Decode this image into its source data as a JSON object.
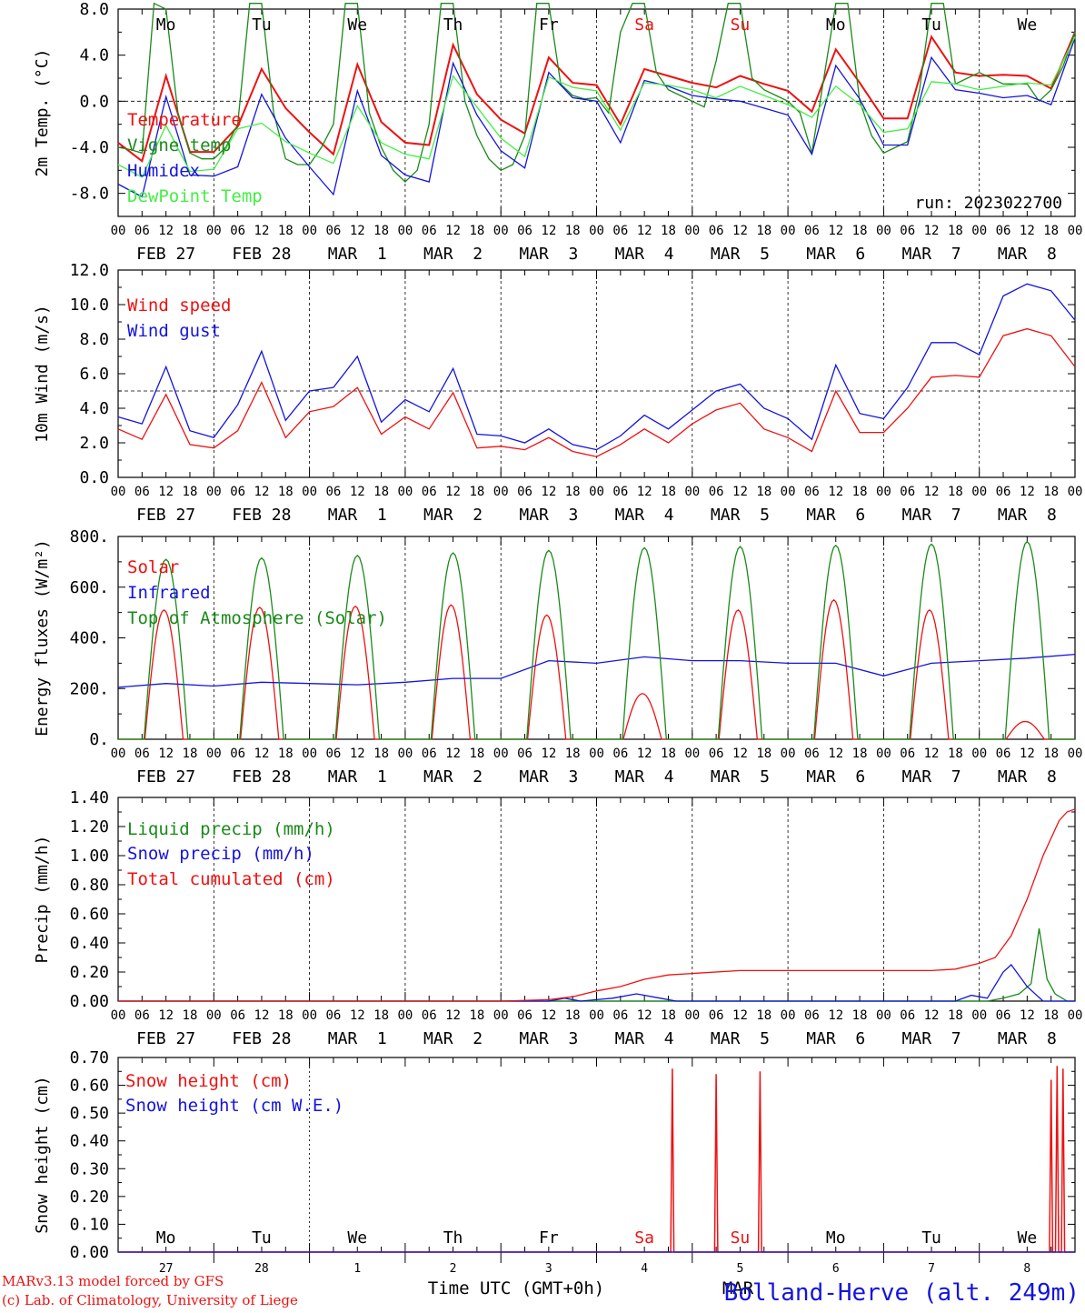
{
  "footer": {
    "model": "MARv3.13 model forced by GFS",
    "copyright": "(c) Lab. of Climatology, University of Liege",
    "xlabel": "Time UTC (GMT+0h)",
    "station": "Bolland-Herve (alt. 249m)",
    "month_overlay": "MAR"
  },
  "colors": {
    "red": "#ee1111",
    "green": "#1a8a1a",
    "blue": "#1414dd",
    "lightgreen": "#44ee44"
  },
  "days": {
    "weekday": [
      "Mo",
      "Tu",
      "We",
      "Th",
      "Fr",
      "Sa",
      "Su",
      "Mo",
      "Tu",
      "We"
    ],
    "weekend_index": [
      5,
      6
    ],
    "date": [
      "FEB 27",
      "FEB 28",
      "MAR  1",
      "MAR  2",
      "MAR  3",
      "MAR  4",
      "MAR  5",
      "MAR  6",
      "MAR  7",
      "MAR  8"
    ],
    "daynum": [
      "27",
      "28",
      "1",
      "2",
      "3",
      "4",
      "5",
      "6",
      "7",
      "8"
    ],
    "hour_ticks": [
      "00",
      "06",
      "12",
      "18"
    ],
    "final_tick": "00"
  },
  "chart_data": [
    {
      "type": "line",
      "name": "temperature",
      "ylabel": "2m Temp. (°C)",
      "ylim": [
        -10,
        8
      ],
      "yticks": [
        "8.0",
        "4.0",
        "0.0",
        "-4.0",
        "-8.0"
      ],
      "ytick_values": [
        8,
        4,
        0,
        -4,
        -8
      ],
      "ref_line": 0,
      "annotation": "run: 2023022700",
      "grid": "dashed vertical lines at each midnight",
      "x_unit": "hours since FEB 27 00 UTC",
      "series": [
        {
          "name": "Temperature",
          "color": "#ee1111",
          "x": [
            0,
            6,
            12,
            18,
            24,
            30,
            36,
            42,
            48,
            54,
            60,
            66,
            72,
            78,
            84,
            90,
            96,
            102,
            108,
            114,
            120,
            126,
            132,
            138,
            144,
            150,
            156,
            162,
            168,
            174,
            180,
            186,
            192,
            198,
            204,
            210,
            216,
            222,
            228,
            234,
            240
          ],
          "values": [
            -3.6,
            -5.2,
            2.2,
            -4.4,
            -4.4,
            -2.2,
            2.8,
            -0.6,
            -2.7,
            -4.6,
            3.2,
            -1.8,
            -3.6,
            -3.8,
            4.9,
            0.6,
            -1.6,
            -2.8,
            3.8,
            1.6,
            1.4,
            -2.0,
            2.8,
            2.2,
            1.6,
            1.2,
            2.2,
            1.5,
            0.9,
            -0.9,
            4.5,
            1.6,
            -1.5,
            -1.5,
            5.6,
            2.5,
            2.2,
            2.3,
            2.2,
            1.1,
            6.0
          ]
        },
        {
          "name": "Vigne temp",
          "color": "#1a8a1a",
          "x": [
            0,
            3,
            6,
            9,
            12,
            15,
            18,
            21,
            24,
            27,
            30,
            33,
            36,
            39,
            42,
            45,
            48,
            51,
            54,
            57,
            60,
            63,
            66,
            69,
            72,
            75,
            78,
            81,
            84,
            87,
            90,
            93,
            96,
            99,
            102,
            105,
            108,
            111,
            114,
            117,
            120,
            123,
            126,
            129,
            132,
            135,
            138,
            141,
            144,
            147,
            150,
            153,
            156,
            159,
            162,
            165,
            168,
            171,
            174,
            177,
            180,
            183,
            186,
            189,
            192,
            195,
            198,
            201,
            204,
            207,
            210,
            213,
            216,
            219,
            222,
            225,
            228,
            231,
            234,
            237,
            240
          ],
          "values": [
            -4.0,
            -4.2,
            -4.5,
            8.5,
            8.0,
            -1.0,
            -4.5,
            -5.0,
            -5.0,
            -4.0,
            -2.0,
            8.5,
            8.5,
            -1.0,
            -5.0,
            -5.5,
            -5.5,
            -4.0,
            -2.0,
            8.5,
            8.5,
            -1.0,
            -4.0,
            -6.0,
            -7.0,
            -6.0,
            -2.0,
            8.5,
            8.5,
            0.0,
            -3.0,
            -5.0,
            -6.0,
            -5.5,
            -3.0,
            8.5,
            8.5,
            1.5,
            0.5,
            0.2,
            0.3,
            -1.0,
            6.0,
            8.5,
            8.5,
            2.5,
            1.0,
            0.5,
            0.0,
            -0.5,
            3.5,
            8.5,
            8.5,
            2.0,
            1.0,
            0.5,
            0.0,
            -1.0,
            -4.5,
            2.0,
            8.5,
            8.5,
            0.0,
            -3.0,
            -4.5,
            -4.0,
            -3.5,
            1.0,
            8.5,
            8.5,
            1.5,
            2.0,
            2.5,
            2.0,
            1.5,
            1.5,
            1.5,
            0.0,
            1.0,
            3.0,
            6.0
          ]
        },
        {
          "name": "Humidex",
          "color": "#1414dd",
          "x": [
            0,
            6,
            12,
            18,
            24,
            30,
            36,
            42,
            48,
            54,
            60,
            66,
            72,
            78,
            84,
            90,
            96,
            102,
            108,
            114,
            120,
            126,
            132,
            138,
            144,
            150,
            156,
            162,
            168,
            174,
            180,
            186,
            192,
            198,
            204,
            210,
            216,
            222,
            228,
            234,
            240
          ],
          "values": [
            -7.2,
            -8.3,
            0.4,
            -6.4,
            -6.5,
            -5.7,
            0.6,
            -3.2,
            -5.7,
            -8.1,
            0.9,
            -4.7,
            -6.4,
            -7.0,
            3.3,
            -1.2,
            -4.3,
            -5.8,
            2.5,
            0.3,
            0.0,
            -3.6,
            1.8,
            1.3,
            0.5,
            0.2,
            0.0,
            -0.6,
            -1.2,
            -4.6,
            3.1,
            0.2,
            -3.8,
            -3.8,
            3.8,
            1.0,
            0.7,
            0.3,
            0.5,
            -0.3,
            5.5
          ]
        },
        {
          "name": "DewPoint Temp",
          "color": "#44ee44",
          "x": [
            0,
            6,
            12,
            18,
            24,
            30,
            36,
            42,
            48,
            54,
            60,
            66,
            72,
            78,
            84,
            90,
            96,
            102,
            108,
            114,
            120,
            126,
            132,
            138,
            144,
            150,
            156,
            162,
            168,
            174,
            180,
            186,
            192,
            198,
            204,
            210,
            216,
            222,
            228,
            234,
            240
          ],
          "values": [
            -5.5,
            -6.6,
            -2.1,
            -6.1,
            -5.9,
            -2.4,
            -1.9,
            -3.5,
            -4.5,
            -5.4,
            -0.4,
            -3.6,
            -4.6,
            -5.0,
            2.2,
            -0.5,
            -3.2,
            -4.8,
            2.1,
            1.2,
            0.9,
            -2.5,
            1.6,
            1.4,
            1.0,
            0.3,
            1.3,
            0.5,
            -0.3,
            -1.4,
            1.3,
            -0.3,
            -2.7,
            -2.4,
            1.7,
            1.5,
            1.0,
            1.3,
            1.6,
            1.4,
            5.6
          ]
        }
      ]
    },
    {
      "type": "line",
      "name": "wind",
      "ylabel": "10m Wind (m/s)",
      "ylim": [
        0,
        12
      ],
      "yticks": [
        "12.0",
        "10.0",
        "8.0",
        "6.0",
        "4.0",
        "2.0",
        "0.0"
      ],
      "ytick_values": [
        12,
        10,
        8,
        6,
        4,
        2,
        0
      ],
      "ref_line": 5,
      "x_unit": "hours since FEB 27 00 UTC",
      "series": [
        {
          "name": "Wind speed",
          "color": "#ee1111",
          "x": [
            0,
            6,
            12,
            18,
            24,
            30,
            36,
            42,
            48,
            54,
            60,
            66,
            72,
            78,
            84,
            90,
            96,
            102,
            108,
            114,
            120,
            126,
            132,
            138,
            144,
            150,
            156,
            162,
            168,
            174,
            180,
            186,
            192,
            198,
            204,
            210,
            216,
            222,
            228,
            234,
            240
          ],
          "values": [
            2.8,
            2.2,
            4.8,
            1.9,
            1.7,
            2.7,
            5.5,
            2.3,
            3.8,
            4.1,
            5.2,
            2.5,
            3.5,
            2.8,
            4.9,
            1.7,
            1.8,
            1.6,
            2.3,
            1.5,
            1.2,
            1.9,
            2.8,
            2.0,
            3.1,
            3.9,
            4.3,
            2.8,
            2.3,
            1.5,
            5.0,
            2.6,
            2.6,
            4.0,
            5.8,
            5.9,
            5.8,
            8.2,
            8.6,
            8.2,
            6.4
          ]
        },
        {
          "name": "Wind gust",
          "color": "#1414dd",
          "x": [
            0,
            6,
            12,
            18,
            24,
            30,
            36,
            42,
            48,
            54,
            60,
            66,
            72,
            78,
            84,
            90,
            96,
            102,
            108,
            114,
            120,
            126,
            132,
            138,
            144,
            150,
            156,
            162,
            168,
            174,
            180,
            186,
            192,
            198,
            204,
            210,
            216,
            222,
            228,
            234,
            240
          ],
          "values": [
            3.5,
            3.1,
            6.4,
            2.7,
            2.3,
            4.2,
            7.3,
            3.3,
            5.0,
            5.2,
            7.0,
            3.2,
            4.5,
            3.8,
            6.3,
            2.5,
            2.4,
            2.0,
            2.8,
            1.9,
            1.6,
            2.4,
            3.6,
            2.8,
            3.9,
            5.0,
            5.4,
            4.0,
            3.4,
            2.2,
            6.5,
            3.7,
            3.4,
            5.2,
            7.8,
            7.8,
            7.1,
            10.5,
            11.2,
            10.8,
            9.1
          ]
        }
      ]
    },
    {
      "type": "line",
      "name": "energy",
      "ylabel": "Energy fluxes (W/m²)",
      "ylim": [
        0,
        800
      ],
      "yticks": [
        "800.",
        "600.",
        "400.",
        "200.",
        "0."
      ],
      "ytick_values": [
        800,
        600,
        400,
        200,
        0
      ],
      "x_unit": "hours since FEB 27 00 UTC",
      "series": [
        {
          "name": "Solar",
          "color": "#ee1111",
          "daily_peak_hour_offset": 11.5,
          "daily_peak": [
            510,
            520,
            525,
            530,
            490,
            180,
            510,
            550,
            510,
            70
          ]
        },
        {
          "name": "Infrared",
          "color": "#1414dd",
          "x": [
            0,
            12,
            24,
            36,
            48,
            60,
            72,
            84,
            96,
            108,
            120,
            132,
            144,
            156,
            168,
            180,
            192,
            204,
            216,
            228,
            240
          ],
          "values": [
            205,
            220,
            210,
            225,
            220,
            215,
            225,
            240,
            240,
            310,
            300,
            325,
            310,
            310,
            300,
            300,
            250,
            300,
            310,
            320,
            335
          ]
        },
        {
          "name": "Top of Atmosphere (Solar)",
          "color": "#1a8a1a",
          "daily_peak_hour_offset": 12,
          "daily_peak": [
            710,
            715,
            725,
            735,
            745,
            755,
            760,
            765,
            770,
            780
          ]
        }
      ]
    },
    {
      "type": "line",
      "name": "precip",
      "ylabel": "Precip (mm/h)",
      "ylim": [
        0,
        1.4
      ],
      "yticks": [
        "1.40",
        "1.20",
        "1.00",
        "0.80",
        "0.60",
        "0.40",
        "0.20",
        "0.00"
      ],
      "ytick_values": [
        1.4,
        1.2,
        1.0,
        0.8,
        0.6,
        0.4,
        0.2,
        0.0
      ],
      "x_unit": "hours since FEB 27 00 UTC",
      "series": [
        {
          "name": "Liquid precip (mm/h)",
          "color": "#1a8a1a",
          "x": [
            0,
            218,
            222,
            226,
            229,
            231,
            233,
            235,
            238,
            240
          ],
          "values": [
            0,
            0,
            0.02,
            0.05,
            0.12,
            0.5,
            0.15,
            0.05,
            0,
            0
          ]
        },
        {
          "name": "Snow precip (mm/h)",
          "color": "#1414dd",
          "x": [
            0,
            108,
            112,
            116,
            120,
            124,
            130,
            136,
            140,
            150,
            210,
            214,
            218,
            222,
            224,
            228,
            232,
            240
          ],
          "values": [
            0,
            0,
            0.02,
            0,
            0.01,
            0.02,
            0.05,
            0.02,
            0,
            0,
            0,
            0.04,
            0.02,
            0.2,
            0.25,
            0.1,
            0,
            0
          ]
        },
        {
          "name": "Total cumulated (cm)",
          "color": "#ee1111",
          "x": [
            0,
            96,
            108,
            114,
            120,
            126,
            132,
            138,
            144,
            156,
            168,
            180,
            192,
            204,
            210,
            216,
            220,
            224,
            228,
            232,
            236,
            238,
            240
          ],
          "values": [
            0,
            0,
            0.01,
            0.03,
            0.07,
            0.1,
            0.15,
            0.18,
            0.19,
            0.21,
            0.21,
            0.21,
            0.21,
            0.21,
            0.22,
            0.26,
            0.3,
            0.45,
            0.7,
            1.0,
            1.24,
            1.3,
            1.32
          ]
        }
      ]
    },
    {
      "type": "line",
      "name": "snow",
      "ylabel": "Snow height (cm)",
      "ylim": [
        0,
        0.7
      ],
      "yticks": [
        "0.70",
        "0.60",
        "0.50",
        "0.40",
        "0.30",
        "0.20",
        "0.10",
        "0.00"
      ],
      "ytick_values": [
        0.7,
        0.6,
        0.5,
        0.4,
        0.3,
        0.2,
        0.1,
        0.0
      ],
      "x_unit": "hours since FEB 27 00 UTC",
      "series": [
        {
          "name": "Snow height (cm)",
          "color": "#ee1111",
          "spikes_x": [
            139,
            150,
            161,
            234,
            235.5,
            237
          ],
          "spikes_values": [
            0.66,
            0.64,
            0.65,
            0.62,
            0.67,
            0.66
          ]
        },
        {
          "name": "Snow height (cm W.E.)",
          "color": "#1414dd",
          "x": [
            0,
            240
          ],
          "values": [
            0,
            0
          ]
        }
      ]
    }
  ]
}
